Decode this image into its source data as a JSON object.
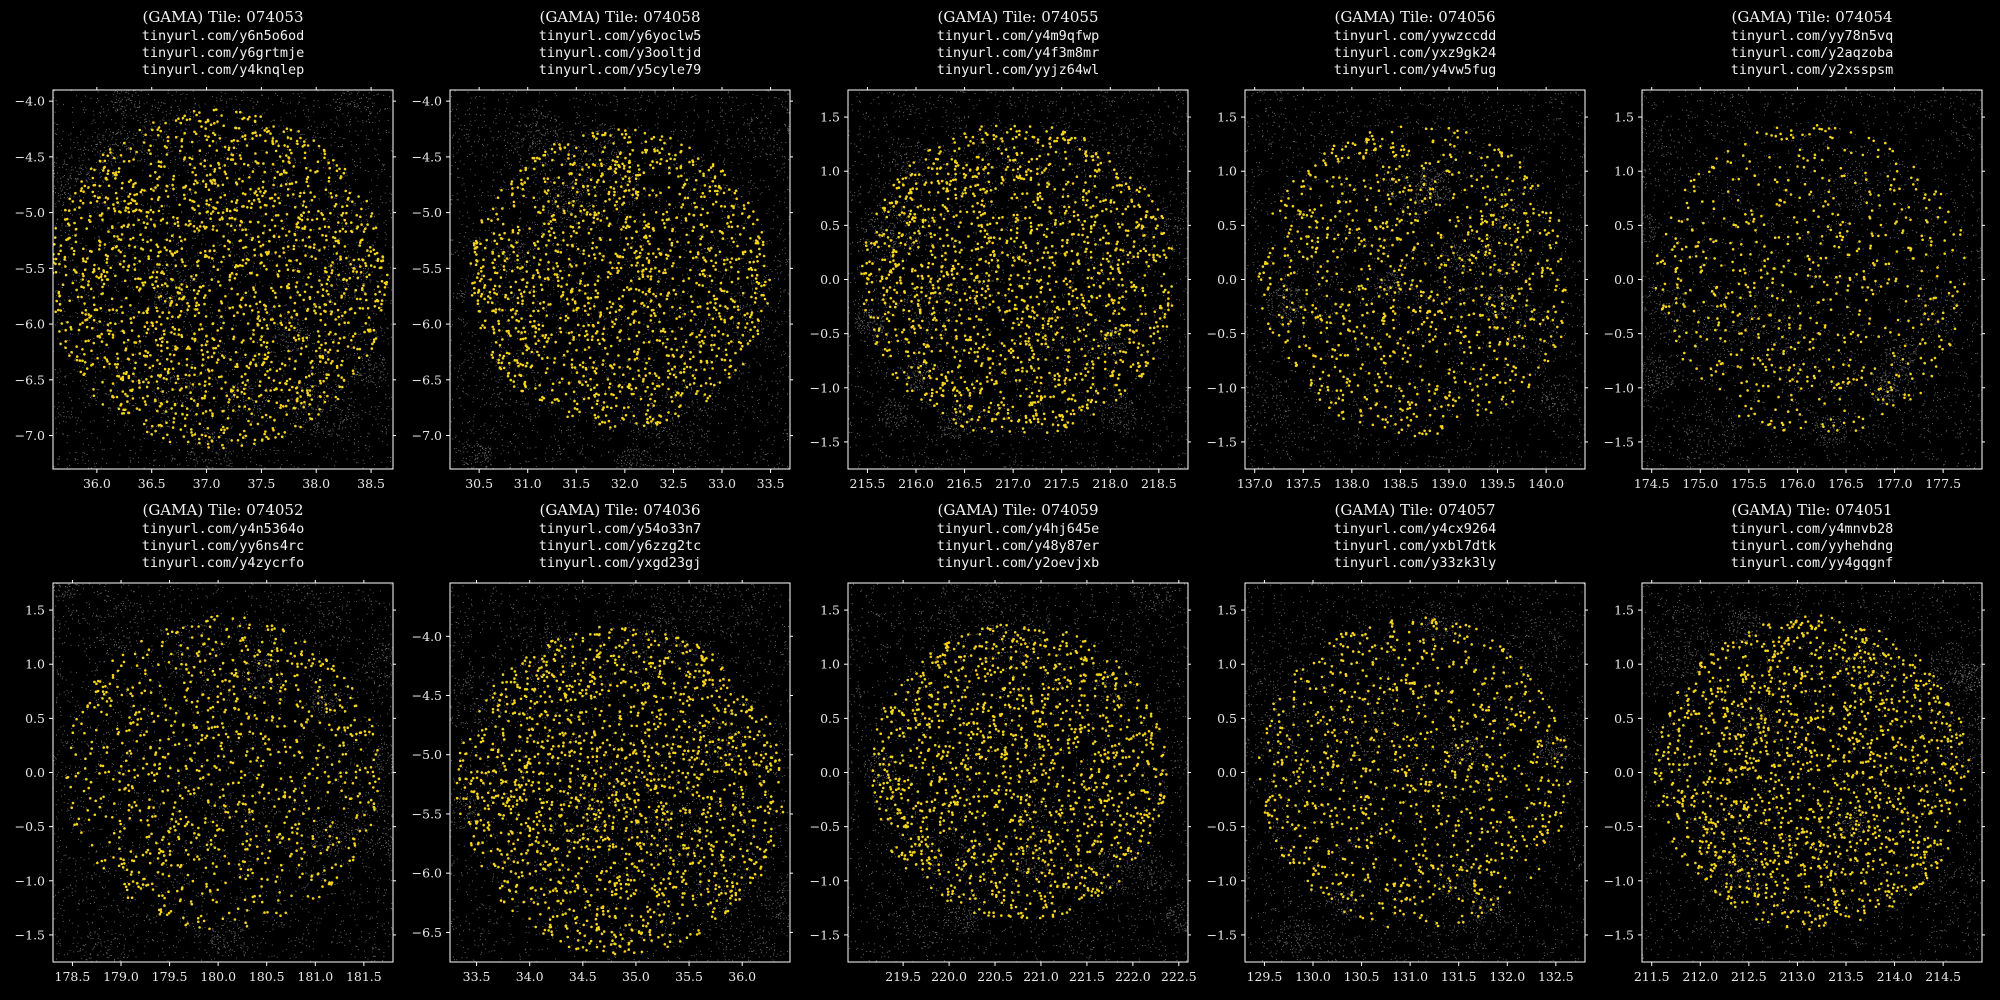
{
  "background_color": "#000000",
  "target_color": "#f5d516",
  "field_color": "#c8c8c8",
  "chart_data": [
    {
      "type": "scatter",
      "title": "(GAMA) Tile: 074053",
      "links": [
        "tinyurl.com/y6n5o6od",
        "tinyurl.com/y6grtmje",
        "tinyurl.com/y4knqlep"
      ],
      "xlim": [
        35.6,
        38.7
      ],
      "ylim": [
        -7.3,
        -3.9
      ],
      "xticks": [
        36.0,
        36.5,
        37.0,
        37.5,
        38.0,
        38.5
      ],
      "yticks": [
        -4.0,
        -4.5,
        -5.0,
        -5.5,
        -6.0,
        -6.5,
        -7.0
      ],
      "target_region": {
        "shape": "circle",
        "center": [
          37.1,
          -5.6
        ],
        "radius": 1.55
      },
      "target_density": "high"
    },
    {
      "type": "scatter",
      "title": "(GAMA) Tile: 074058",
      "links": [
        "tinyurl.com/y6yoclw5",
        "tinyurl.com/y3ooltjd",
        "tinyurl.com/y5cyle79"
      ],
      "xlim": [
        30.2,
        33.7
      ],
      "ylim": [
        -7.3,
        -3.9
      ],
      "xticks": [
        30.5,
        31.0,
        31.5,
        32.0,
        32.5,
        33.0,
        33.5
      ],
      "yticks": [
        -4.0,
        -4.5,
        -5.0,
        -5.5,
        -6.0,
        -6.5,
        -7.0
      ],
      "target_region": {
        "shape": "circle",
        "center": [
          31.95,
          -5.6
        ],
        "radius": 1.55
      },
      "target_density": "high"
    },
    {
      "type": "scatter",
      "title": "(GAMA) Tile: 074055",
      "links": [
        "tinyurl.com/y4m9qfwp",
        "tinyurl.com/y4f3m8mr",
        "tinyurl.com/yyjz64wl"
      ],
      "xlim": [
        215.3,
        218.8
      ],
      "ylim": [
        -1.75,
        1.75
      ],
      "xticks": [
        215.5,
        216.0,
        216.5,
        217.0,
        217.5,
        218.0,
        218.5
      ],
      "yticks": [
        1.5,
        1.0,
        0.5,
        0.0,
        -0.5,
        -1.0,
        -1.5
      ],
      "target_region": {
        "shape": "circle",
        "center": [
          217.05,
          0.0
        ],
        "radius": 1.62
      },
      "target_density": "high"
    },
    {
      "type": "scatter",
      "title": "(GAMA) Tile: 074056",
      "links": [
        "tinyurl.com/yywzccdd",
        "tinyurl.com/yxz9gk24",
        "tinyurl.com/y4vw5fug"
      ],
      "xlim": [
        136.9,
        140.4
      ],
      "ylim": [
        -1.75,
        1.75
      ],
      "xticks": [
        137.0,
        137.5,
        138.0,
        138.5,
        139.0,
        139.5,
        140.0
      ],
      "yticks": [
        1.5,
        1.0,
        0.5,
        0.0,
        -0.5,
        -1.0,
        -1.5
      ],
      "target_region": {
        "shape": "circle",
        "center": [
          138.65,
          0.0
        ],
        "radius": 1.62
      },
      "target_density": "medium"
    },
    {
      "type": "scatter",
      "title": "(GAMA) Tile: 074054",
      "links": [
        "tinyurl.com/yy78n5vq",
        "tinyurl.com/y2aqzoba",
        "tinyurl.com/y2xsspsm"
      ],
      "xlim": [
        174.4,
        177.9
      ],
      "ylim": [
        -1.75,
        1.75
      ],
      "xticks": [
        174.5,
        175.0,
        175.5,
        176.0,
        176.5,
        177.0,
        177.5
      ],
      "yticks": [
        1.5,
        1.0,
        0.5,
        0.0,
        -0.5,
        -1.0,
        -1.5
      ],
      "target_region": {
        "shape": "circle",
        "center": [
          176.15,
          0.0
        ],
        "radius": 1.62
      },
      "target_density": "low"
    },
    {
      "type": "scatter",
      "title": "(GAMA) Tile: 074052",
      "links": [
        "tinyurl.com/y4n5364o",
        "tinyurl.com/yy6ns4rc",
        "tinyurl.com/y4zycrfo"
      ],
      "xlim": [
        178.3,
        181.8
      ],
      "ylim": [
        -1.75,
        1.75
      ],
      "xticks": [
        178.5,
        179.0,
        179.5,
        180.0,
        180.5,
        181.0,
        181.5
      ],
      "yticks": [
        1.5,
        1.0,
        0.5,
        0.0,
        -0.5,
        -1.0,
        -1.5
      ],
      "target_region": {
        "shape": "circle",
        "center": [
          180.05,
          0.0
        ],
        "radius": 1.62
      },
      "target_density": "medium"
    },
    {
      "type": "scatter",
      "title": "(GAMA) Tile: 074036",
      "links": [
        "tinyurl.com/y54o33n7",
        "tinyurl.com/y6zzg2tc",
        "tinyurl.com/yxgd23gj"
      ],
      "xlim": [
        33.25,
        36.45
      ],
      "ylim": [
        -6.75,
        -3.55
      ],
      "xticks": [
        33.5,
        34.0,
        34.5,
        35.0,
        35.5,
        36.0
      ],
      "yticks": [
        -4.0,
        -4.5,
        -5.0,
        -5.5,
        -6.0,
        -6.5
      ],
      "target_region": {
        "shape": "clipped-circle",
        "center": [
          34.85,
          -5.3
        ],
        "radius": 1.55,
        "y_max": -3.65
      },
      "target_density": "high"
    },
    {
      "type": "scatter",
      "title": "(GAMA) Tile: 074059",
      "links": [
        "tinyurl.com/y4hj645e",
        "tinyurl.com/y48y87er",
        "tinyurl.com/y2oevjxb"
      ],
      "xlim": [
        218.9,
        222.6
      ],
      "ylim": [
        -1.75,
        1.75
      ],
      "xticks": [
        219.5,
        220.0,
        220.5,
        221.0,
        221.5,
        222.0,
        222.5
      ],
      "yticks": [
        1.5,
        1.0,
        0.5,
        0.0,
        -0.5,
        -1.0,
        -1.5
      ],
      "target_region": {
        "shape": "circle",
        "center": [
          220.75,
          0.0
        ],
        "radius": 1.62
      },
      "target_density": "high"
    },
    {
      "type": "scatter",
      "title": "(GAMA) Tile: 074057",
      "links": [
        "tinyurl.com/y4cx9264",
        "tinyurl.com/yxbl7dtk",
        "tinyurl.com/y33zk3ly"
      ],
      "xlim": [
        129.3,
        132.8
      ],
      "ylim": [
        -1.75,
        1.75
      ],
      "xticks": [
        129.5,
        130.0,
        130.5,
        131.0,
        131.5,
        132.0,
        132.5
      ],
      "yticks": [
        1.5,
        1.0,
        0.5,
        0.0,
        -0.5,
        -1.0,
        -1.5
      ],
      "target_region": {
        "shape": "circle",
        "center": [
          131.05,
          0.0
        ],
        "radius": 1.62
      },
      "target_density": "medium"
    },
    {
      "type": "scatter",
      "title": "(GAMA) Tile: 074051",
      "links": [
        "tinyurl.com/y4mnvb28",
        "tinyurl.com/yyhehdng",
        "tinyurl.com/yy4gqgnf"
      ],
      "xlim": [
        211.4,
        214.9
      ],
      "ylim": [
        -1.75,
        1.75
      ],
      "xticks": [
        211.5,
        212.0,
        212.5,
        213.0,
        213.5,
        214.0,
        214.5
      ],
      "yticks": [
        1.5,
        1.0,
        0.5,
        0.0,
        -0.5,
        -1.0,
        -1.5
      ],
      "target_region": {
        "shape": "circle",
        "center": [
          213.15,
          0.0
        ],
        "radius": 1.62
      },
      "target_density": "high"
    }
  ]
}
